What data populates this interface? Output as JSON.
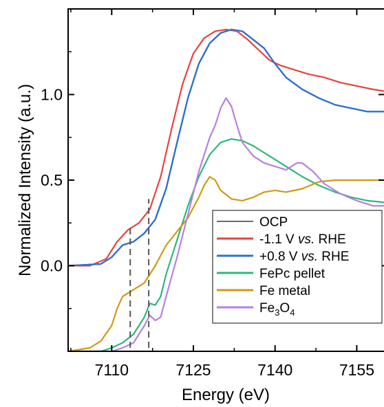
{
  "chart_data": {
    "type": "line",
    "xlabel": "Energy (eV)",
    "ylabel": "Normalized Intensity (a.u.)",
    "xlim": [
      7102,
      7160
    ],
    "ylim": [
      -0.5,
      1.5
    ],
    "x_ticks": [
      7110,
      7125,
      7140,
      7155
    ],
    "x_tick_labels": [
      "7110",
      "7125",
      "7140",
      "7155"
    ],
    "y_ticks": [
      0.0,
      0.5,
      1.0
    ],
    "y_tick_labels": [
      "0.0",
      "0.5",
      "1.0"
    ],
    "grid": false,
    "legend_position": "bottom-right",
    "vlines": [
      {
        "x": 7113.4,
        "y_range": [
          -0.48,
          0.22
        ]
      },
      {
        "x": 7116.8,
        "y_range": [
          -0.48,
          0.39
        ]
      }
    ],
    "series": [
      {
        "name": "OCP",
        "color": "#3a3a3a",
        "points": [
          [
            7102,
            0.0
          ],
          [
            7108,
            0.01
          ],
          [
            7110,
            0.05
          ],
          [
            7112,
            0.12
          ],
          [
            7114,
            0.14
          ],
          [
            7116,
            0.19
          ],
          [
            7118,
            0.27
          ],
          [
            7120,
            0.45
          ],
          [
            7122,
            0.72
          ],
          [
            7124,
            0.98
          ],
          [
            7126,
            1.18
          ],
          [
            7128,
            1.3
          ],
          [
            7130,
            1.36
          ],
          [
            7132,
            1.38
          ],
          [
            7134,
            1.37
          ],
          [
            7136,
            1.32
          ],
          [
            7138,
            1.27
          ],
          [
            7140,
            1.18
          ],
          [
            7142,
            1.1
          ],
          [
            7145,
            1.03
          ],
          [
            7148,
            0.98
          ],
          [
            7151,
            0.94
          ],
          [
            7154,
            0.92
          ],
          [
            7157,
            0.9
          ],
          [
            7160,
            0.9
          ]
        ]
      },
      {
        "name": "-1.1 V vs. RHE",
        "color": "#e8433e",
        "points": [
          [
            7102,
            0.0
          ],
          [
            7106,
            0.0
          ],
          [
            7109,
            0.04
          ],
          [
            7111,
            0.14
          ],
          [
            7113,
            0.21
          ],
          [
            7115,
            0.25
          ],
          [
            7117,
            0.33
          ],
          [
            7119,
            0.52
          ],
          [
            7121,
            0.8
          ],
          [
            7123,
            1.06
          ],
          [
            7125,
            1.24
          ],
          [
            7127,
            1.33
          ],
          [
            7129,
            1.37
          ],
          [
            7131,
            1.38
          ],
          [
            7133,
            1.37
          ],
          [
            7135,
            1.32
          ],
          [
            7137,
            1.26
          ],
          [
            7139,
            1.2
          ],
          [
            7141,
            1.17
          ],
          [
            7143,
            1.15
          ],
          [
            7146,
            1.12
          ],
          [
            7149,
            1.1
          ],
          [
            7152,
            1.07
          ],
          [
            7155,
            1.05
          ],
          [
            7158,
            1.03
          ],
          [
            7160,
            1.02
          ]
        ]
      },
      {
        "name": "+0.8 V vs. RHE",
        "color": "#2a72d6",
        "points": [
          [
            7102,
            0.0
          ],
          [
            7108,
            0.01
          ],
          [
            7110,
            0.05
          ],
          [
            7112,
            0.12
          ],
          [
            7114,
            0.14
          ],
          [
            7116,
            0.19
          ],
          [
            7118,
            0.27
          ],
          [
            7120,
            0.45
          ],
          [
            7122,
            0.72
          ],
          [
            7124,
            0.98
          ],
          [
            7126,
            1.18
          ],
          [
            7128,
            1.3
          ],
          [
            7130,
            1.36
          ],
          [
            7132,
            1.38
          ],
          [
            7134,
            1.37
          ],
          [
            7136,
            1.32
          ],
          [
            7138,
            1.27
          ],
          [
            7140,
            1.18
          ],
          [
            7142,
            1.1
          ],
          [
            7145,
            1.03
          ],
          [
            7148,
            0.98
          ],
          [
            7151,
            0.94
          ],
          [
            7154,
            0.92
          ],
          [
            7157,
            0.9
          ],
          [
            7160,
            0.9
          ]
        ]
      },
      {
        "name": "FePc pellet",
        "color": "#2db77b",
        "points": [
          [
            7102,
            -0.5
          ],
          [
            7108,
            -0.5
          ],
          [
            7110,
            -0.48
          ],
          [
            7112,
            -0.45
          ],
          [
            7114,
            -0.4
          ],
          [
            7116,
            -0.3
          ],
          [
            7117,
            -0.22
          ],
          [
            7118,
            -0.23
          ],
          [
            7119,
            -0.18
          ],
          [
            7120,
            -0.05
          ],
          [
            7122,
            0.15
          ],
          [
            7124,
            0.35
          ],
          [
            7126,
            0.52
          ],
          [
            7128,
            0.65
          ],
          [
            7130,
            0.72
          ],
          [
            7132,
            0.74
          ],
          [
            7134,
            0.73
          ],
          [
            7136,
            0.7
          ],
          [
            7138,
            0.66
          ],
          [
            7140,
            0.62
          ],
          [
            7142,
            0.58
          ],
          [
            7145,
            0.52
          ],
          [
            7148,
            0.47
          ],
          [
            7151,
            0.43
          ],
          [
            7154,
            0.4
          ],
          [
            7157,
            0.38
          ],
          [
            7160,
            0.37
          ]
        ]
      },
      {
        "name": "Fe metal",
        "color": "#cf9a12",
        "points": [
          [
            7102,
            -0.5
          ],
          [
            7106,
            -0.48
          ],
          [
            7108,
            -0.44
          ],
          [
            7110,
            -0.35
          ],
          [
            7111,
            -0.25
          ],
          [
            7112,
            -0.18
          ],
          [
            7114,
            -0.14
          ],
          [
            7116,
            -0.1
          ],
          [
            7118,
            0.0
          ],
          [
            7120,
            0.12
          ],
          [
            7122,
            0.2
          ],
          [
            7124,
            0.28
          ],
          [
            7126,
            0.4
          ],
          [
            7127,
            0.47
          ],
          [
            7128,
            0.52
          ],
          [
            7129,
            0.5
          ],
          [
            7130,
            0.44
          ],
          [
            7132,
            0.39
          ],
          [
            7134,
            0.38
          ],
          [
            7136,
            0.4
          ],
          [
            7138,
            0.43
          ],
          [
            7140,
            0.44
          ],
          [
            7142,
            0.43
          ],
          [
            7145,
            0.45
          ],
          [
            7148,
            0.49
          ],
          [
            7151,
            0.5
          ],
          [
            7154,
            0.5
          ],
          [
            7157,
            0.5
          ],
          [
            7160,
            0.5
          ]
        ]
      },
      {
        "name": "Fe3O4",
        "color": "#b97fe0",
        "points": [
          [
            7102,
            -0.5
          ],
          [
            7110,
            -0.5
          ],
          [
            7112,
            -0.48
          ],
          [
            7114,
            -0.45
          ],
          [
            7116,
            -0.35
          ],
          [
            7117,
            -0.29
          ],
          [
            7118,
            -0.32
          ],
          [
            7119,
            -0.3
          ],
          [
            7120,
            -0.18
          ],
          [
            7122,
            0.05
          ],
          [
            7124,
            0.3
          ],
          [
            7126,
            0.55
          ],
          [
            7128,
            0.75
          ],
          [
            7129,
            0.82
          ],
          [
            7130,
            0.92
          ],
          [
            7131,
            0.98
          ],
          [
            7132,
            0.93
          ],
          [
            7133,
            0.82
          ],
          [
            7134,
            0.72
          ],
          [
            7136,
            0.64
          ],
          [
            7138,
            0.6
          ],
          [
            7140,
            0.58
          ],
          [
            7142,
            0.56
          ],
          [
            7144,
            0.6
          ],
          [
            7145,
            0.6
          ],
          [
            7147,
            0.55
          ],
          [
            7149,
            0.48
          ],
          [
            7152,
            0.42
          ],
          [
            7155,
            0.38
          ],
          [
            7158,
            0.35
          ],
          [
            7160,
            0.35
          ]
        ]
      }
    ],
    "legend": [
      {
        "label": "OCP",
        "color": "#3a3a3a",
        "thin": true
      },
      {
        "label_parts": [
          "-1.1 V ",
          "vs.",
          " RHE"
        ],
        "color": "#e8433e"
      },
      {
        "label_parts": [
          "+0.8 V ",
          "vs.",
          " RHE"
        ],
        "color": "#2a72d6"
      },
      {
        "label": "FePc pellet",
        "color": "#2db77b"
      },
      {
        "label": "Fe metal",
        "color": "#cf9a12"
      },
      {
        "label_parts": [
          "Fe",
          "3",
          "O",
          "4"
        ],
        "color": "#b97fe0",
        "subscript": true
      }
    ]
  }
}
